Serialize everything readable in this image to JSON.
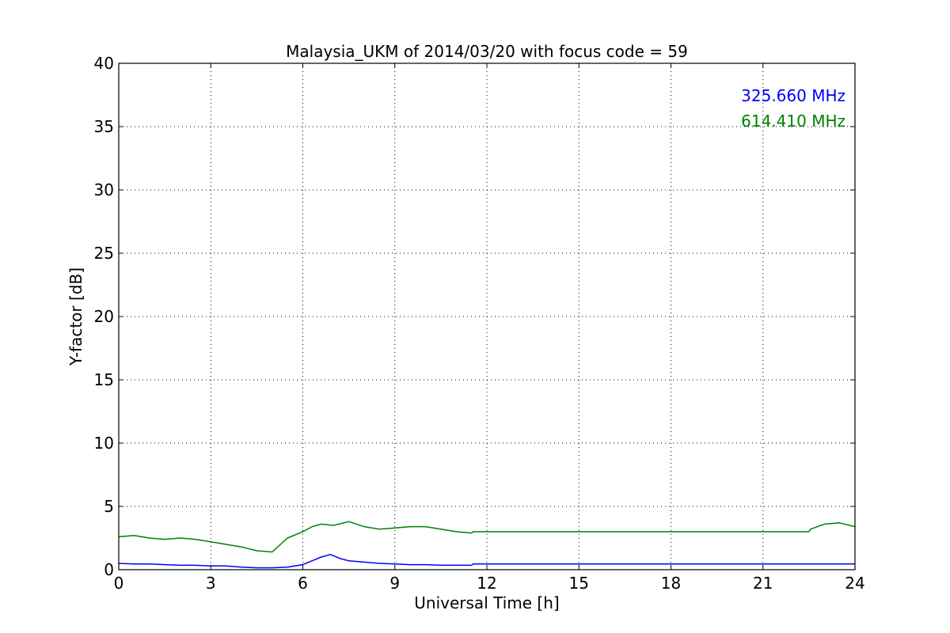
{
  "chart_data": {
    "type": "line",
    "title": "Malaysia_UKM of 2014/03/20 with focus code = 59",
    "xlabel": "Universal Time [h]",
    "ylabel": "Y-factor [dB]",
    "xlim": [
      0,
      24
    ],
    "ylim": [
      0,
      40
    ],
    "xticks": [
      0,
      3,
      6,
      9,
      12,
      15,
      18,
      21,
      24
    ],
    "yticks": [
      0,
      5,
      10,
      15,
      20,
      25,
      30,
      35,
      40
    ],
    "xtick_labels": [
      "0",
      "3",
      "6",
      "9",
      "12",
      "15",
      "18",
      "21",
      "24"
    ],
    "ytick_labels": [
      "0",
      "5",
      "10",
      "15",
      "20",
      "25",
      "30",
      "35",
      "40"
    ],
    "grid": true,
    "legend_placement": "top-right",
    "series": [
      {
        "name": "325.660 MHz",
        "color": "#0000ff",
        "x": [
          0,
          0.5,
          1,
          1.5,
          2,
          2.5,
          3,
          3.5,
          4,
          4.5,
          5,
          5.5,
          6,
          6.3,
          6.6,
          6.9,
          7.2,
          7.5,
          8,
          8.5,
          9,
          9.5,
          10,
          10.5,
          11,
          11.5,
          11.55,
          22.5,
          22.55,
          23,
          23.5,
          24
        ],
        "y": [
          0.5,
          0.45,
          0.45,
          0.4,
          0.35,
          0.35,
          0.3,
          0.3,
          0.2,
          0.15,
          0.15,
          0.2,
          0.4,
          0.7,
          1.0,
          1.2,
          0.9,
          0.7,
          0.6,
          0.5,
          0.45,
          0.4,
          0.4,
          0.35,
          0.35,
          0.35,
          0.45,
          0.45,
          0.45,
          0.45,
          0.45,
          0.45
        ]
      },
      {
        "name": "614.410 MHz",
        "color": "#008000",
        "x": [
          0,
          0.5,
          1,
          1.5,
          2,
          2.5,
          3,
          3.5,
          4,
          4.5,
          5,
          5.5,
          6,
          6.3,
          6.6,
          7,
          7.5,
          8,
          8.5,
          9,
          9.5,
          10,
          10.5,
          11,
          11.5,
          11.55,
          22.5,
          22.55,
          23,
          23.5,
          24
        ],
        "y": [
          2.6,
          2.7,
          2.5,
          2.4,
          2.5,
          2.4,
          2.2,
          2.0,
          1.8,
          1.5,
          1.4,
          2.5,
          3.0,
          3.4,
          3.6,
          3.5,
          3.8,
          3.4,
          3.2,
          3.3,
          3.4,
          3.4,
          3.2,
          3.0,
          2.9,
          3.0,
          3.0,
          3.2,
          3.6,
          3.7,
          3.4
        ]
      }
    ]
  }
}
